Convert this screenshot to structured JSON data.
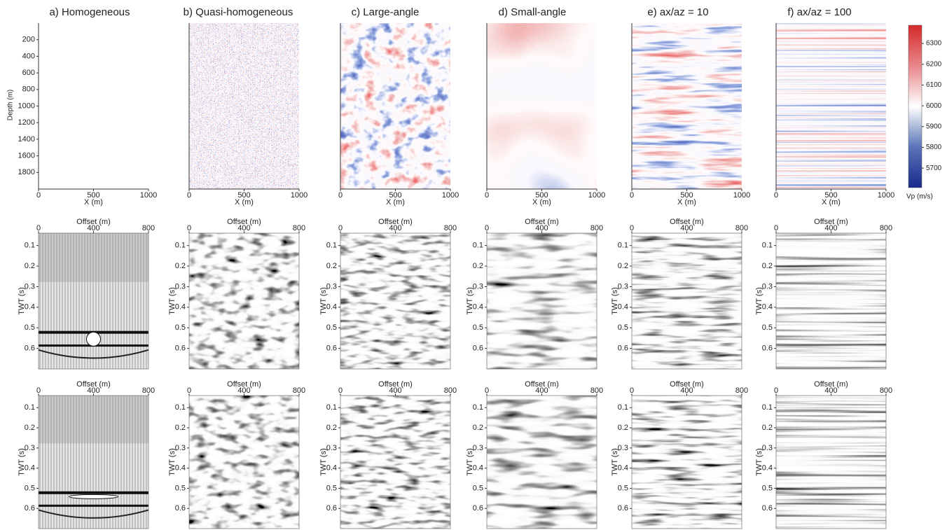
{
  "columns": [
    {
      "title": "a) Homogeneous"
    },
    {
      "title": "b) Quasi-homogeneous"
    },
    {
      "title": "c) Large-angle"
    },
    {
      "title": "d) Small-angle"
    },
    {
      "title": "e) ax/az = 10"
    },
    {
      "title": "f) ax/az = 100"
    }
  ],
  "models": {
    "x_label": "X (m)",
    "y_label": "Depth (m)",
    "xlim": [
      0,
      1000
    ],
    "xticks": [
      0,
      500,
      1000
    ],
    "ylim": [
      0,
      2000
    ],
    "yticks": [
      200,
      400,
      600,
      800,
      1000,
      1200,
      1400,
      1600,
      1800
    ]
  },
  "colorbar": {
    "label": "Vp (m/s)",
    "lim": [
      5606,
      6388
    ],
    "ticks": [
      5700,
      5800,
      5900,
      6000,
      6100,
      6200,
      6300
    ]
  },
  "gathers": {
    "x_label": "Offset (m)",
    "y_label": "TWT (s)",
    "xlim": [
      0,
      800
    ],
    "xticks": [
      0,
      400,
      800
    ],
    "ylim": [
      0.04,
      0.7
    ],
    "yticks": [
      0.1,
      0.2,
      0.3,
      0.4,
      0.5,
      0.6
    ]
  }
}
